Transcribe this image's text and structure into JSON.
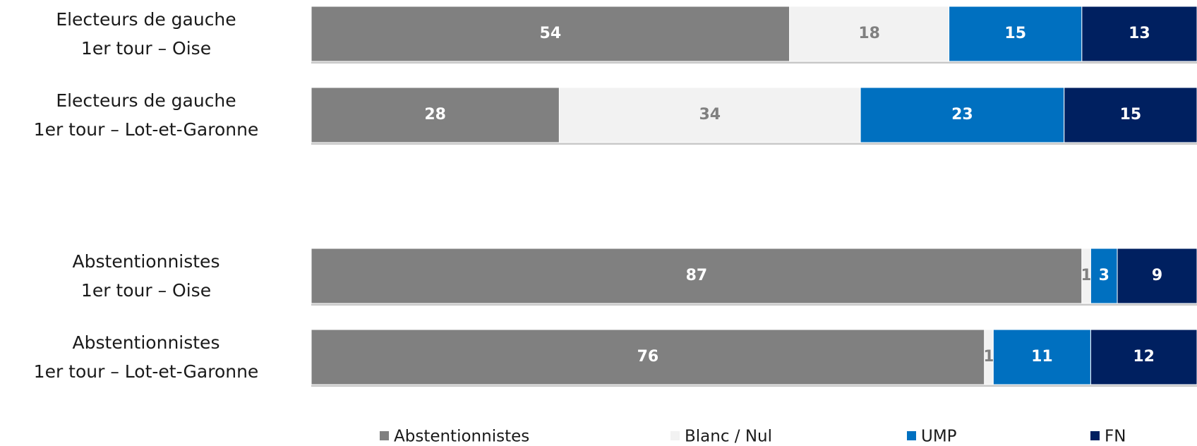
{
  "chart_data": {
    "type": "stacked-barh",
    "categories": [
      [
        "Electeurs de gauche",
        "1er tour – Oise"
      ],
      [
        "Electeurs de gauche",
        "1er tour – Lot-et-Garonne"
      ],
      [
        "Abstentionnistes",
        "1er tour – Oise"
      ],
      [
        "Abstentionnistes",
        "1er tour – Lot-et-Garonne"
      ]
    ],
    "series": [
      {
        "name": "Abstentionnistes",
        "color": "#808080",
        "values": [
          54,
          28,
          87,
          76
        ]
      },
      {
        "name": "Blanc / Nul",
        "color": "#f2f2f2",
        "values": [
          18,
          34,
          1,
          1
        ]
      },
      {
        "name": "UMP",
        "color": "#0070c0",
        "values": [
          15,
          23,
          3,
          11
        ]
      },
      {
        "name": "FN",
        "color": "#002060",
        "values": [
          13,
          15,
          9,
          12
        ]
      }
    ],
    "xlim": [
      0,
      100
    ],
    "legend": "bottom"
  }
}
